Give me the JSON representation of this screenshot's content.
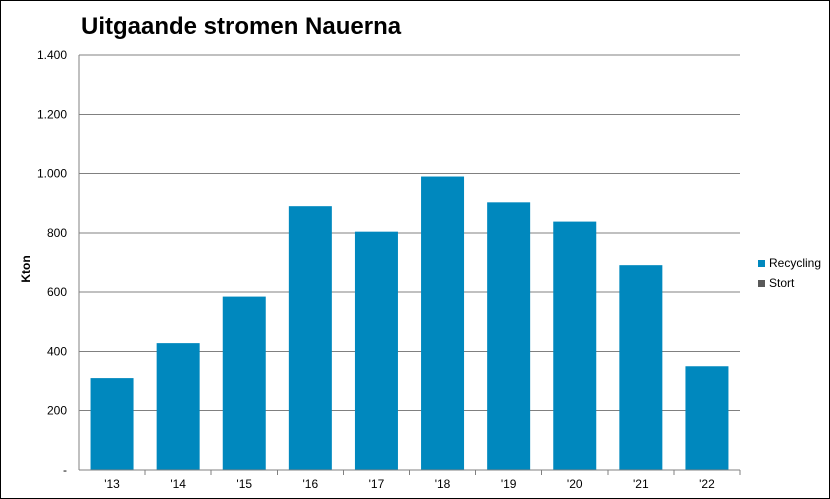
{
  "chart_data": {
    "type": "bar",
    "title": "Uitgaande stromen Nauerna",
    "xlabel": "",
    "ylabel": "Kton",
    "categories": [
      "'13",
      "'14",
      "'15",
      "'16",
      "'17",
      "'18",
      "'19",
      "'20",
      "'21",
      "'22"
    ],
    "series": [
      {
        "name": "Recycling",
        "color": "#0088BE",
        "values": [
          310,
          428,
          585,
          890,
          804,
          990,
          903,
          838,
          691,
          350
        ]
      },
      {
        "name": "Stort",
        "color": "#595959",
        "values": [
          0,
          0,
          0,
          0,
          0,
          0,
          0,
          0,
          0,
          0
        ]
      }
    ],
    "ylim": [
      0,
      1400
    ],
    "yticks": [
      0,
      200,
      400,
      600,
      800,
      1000,
      1200,
      1400
    ],
    "ytick_labels": [
      "-",
      "200",
      "400",
      "600",
      "800",
      "1.000",
      "1.200",
      "1.400"
    ],
    "grid": true,
    "gridline_color": "#808080",
    "legend_position": "right",
    "stacked": true
  }
}
